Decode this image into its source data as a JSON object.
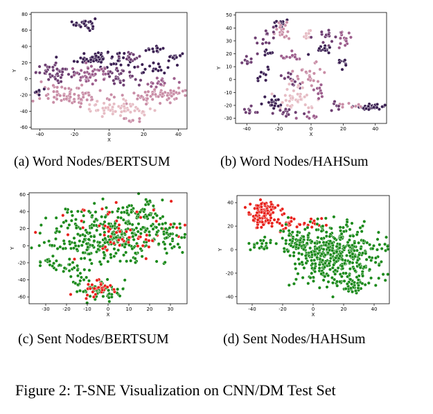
{
  "figure_caption": "Figure 2: T-SNE Visualization on CNN/DM Test Set",
  "chart_data": [
    {
      "type": "scatter",
      "caption": "(a) Word Nodes/BERTSUM",
      "xlabel": "X",
      "ylabel": "Y",
      "xlim": [
        -45,
        45
      ],
      "ylim": [
        -62,
        82
      ],
      "xticks": [
        -40,
        -20,
        0,
        20,
        40
      ],
      "yticks": [
        -60,
        -40,
        -20,
        0,
        20,
        40,
        60,
        80
      ],
      "colors": [
        "#3a1f52",
        "#6e3f72",
        "#9c5d8c",
        "#c98da6",
        "#e6bcc4"
      ],
      "clusters": [
        {
          "cx": -14,
          "cy": 68,
          "sx": 3,
          "sy": 4,
          "n": 25,
          "c": 0
        },
        {
          "cx": -6,
          "cy": 25,
          "sx": 7,
          "sy": 5,
          "n": 70,
          "c": 0
        },
        {
          "cx": 12,
          "cy": 28,
          "sx": 4,
          "sy": 3,
          "n": 14,
          "c": 1
        },
        {
          "cx": 26,
          "cy": 36,
          "sx": 3,
          "sy": 2,
          "n": 12,
          "c": 0
        },
        {
          "cx": 38,
          "cy": 26,
          "sx": 3,
          "sy": 3,
          "n": 16,
          "c": 0
        },
        {
          "cx": 25,
          "cy": 13,
          "sx": 5,
          "sy": 3,
          "n": 16,
          "c": 0
        },
        {
          "cx": -30,
          "cy": 8,
          "sx": 6,
          "sy": 5,
          "n": 45,
          "c": 1
        },
        {
          "cx": -10,
          "cy": 5,
          "sx": 6,
          "sy": 5,
          "n": 45,
          "c": 2
        },
        {
          "cx": 8,
          "cy": 2,
          "sx": 5,
          "sy": 6,
          "n": 30,
          "c": 1
        },
        {
          "cx": -20,
          "cy": -20,
          "sx": 10,
          "sy": 6,
          "n": 80,
          "c": 3
        },
        {
          "cx": 5,
          "cy": -38,
          "sx": 10,
          "sy": 5,
          "n": 55,
          "c": 4
        },
        {
          "cx": 30,
          "cy": -20,
          "sx": 8,
          "sy": 5,
          "n": 55,
          "c": 3
        },
        {
          "cx": 28,
          "cy": -5,
          "sx": 5,
          "sy": 4,
          "n": 18,
          "c": 2
        },
        {
          "cx": -40,
          "cy": -16,
          "sx": 2,
          "sy": 2,
          "n": 6,
          "c": 0
        },
        {
          "cx": 15,
          "cy": -50,
          "sx": 3,
          "sy": 2,
          "n": 8,
          "c": 3
        }
      ]
    },
    {
      "type": "scatter",
      "caption": "(b) Word Nodes/HAHSum",
      "xlabel": "X",
      "ylabel": "Y",
      "xlim": [
        -47,
        47
      ],
      "ylim": [
        -34,
        52
      ],
      "xticks": [
        -40,
        -20,
        0,
        20,
        40
      ],
      "yticks": [
        -30,
        -20,
        -10,
        0,
        10,
        20,
        30,
        40,
        50
      ],
      "colors": [
        "#3a1f52",
        "#6e3f72",
        "#9c5d8c",
        "#c98da6",
        "#e6bcc4"
      ],
      "clusters": [
        {
          "cx": -20,
          "cy": 44,
          "sx": 2,
          "sy": 2,
          "n": 12,
          "c": 0
        },
        {
          "cx": -17,
          "cy": 38,
          "sx": 3,
          "sy": 4,
          "n": 18,
          "c": 3
        },
        {
          "cx": -28,
          "cy": 32,
          "sx": 3,
          "sy": 4,
          "n": 14,
          "c": 1
        },
        {
          "cx": -38,
          "cy": 15,
          "sx": 2,
          "sy": 2,
          "n": 8,
          "c": 1
        },
        {
          "cx": -28,
          "cy": 20,
          "sx": 2,
          "sy": 2,
          "n": 8,
          "c": 0
        },
        {
          "cx": -12,
          "cy": 18,
          "sx": 3,
          "sy": 2,
          "n": 14,
          "c": 2
        },
        {
          "cx": -3,
          "cy": 35,
          "sx": 2,
          "sy": 2,
          "n": 10,
          "c": 4
        },
        {
          "cx": 10,
          "cy": 34,
          "sx": 3,
          "sy": 3,
          "n": 16,
          "c": 1
        },
        {
          "cx": 8,
          "cy": 24,
          "sx": 3,
          "sy": 2,
          "n": 14,
          "c": 0
        },
        {
          "cx": 20,
          "cy": 31,
          "sx": 3,
          "sy": 4,
          "n": 14,
          "c": 2
        },
        {
          "cx": 20,
          "cy": 12,
          "sx": 2,
          "sy": 2,
          "n": 10,
          "c": 0
        },
        {
          "cx": -30,
          "cy": 4,
          "sx": 2,
          "sy": 4,
          "n": 10,
          "c": 0
        },
        {
          "cx": -12,
          "cy": 0,
          "sx": 3,
          "sy": 4,
          "n": 14,
          "c": 1
        },
        {
          "cx": -3,
          "cy": 3,
          "sx": 5,
          "sy": 4,
          "n": 25,
          "c": 3
        },
        {
          "cx": -10,
          "cy": -14,
          "sx": 7,
          "sy": 5,
          "n": 40,
          "c": 4
        },
        {
          "cx": -25,
          "cy": -18,
          "sx": 4,
          "sy": 3,
          "n": 18,
          "c": 0
        },
        {
          "cx": -38,
          "cy": -23,
          "sx": 3,
          "sy": 3,
          "n": 10,
          "c": 1
        },
        {
          "cx": -15,
          "cy": -26,
          "sx": 4,
          "sy": 2,
          "n": 14,
          "c": 1
        },
        {
          "cx": 5,
          "cy": -10,
          "sx": 3,
          "sy": 3,
          "n": 10,
          "c": 2
        },
        {
          "cx": 36,
          "cy": -21,
          "sx": 5,
          "sy": 1.2,
          "n": 35,
          "c": 0
        },
        {
          "cx": 26,
          "cy": -20,
          "sx": 3,
          "sy": 1,
          "n": 8,
          "c": 3
        },
        {
          "cx": 0,
          "cy": -28,
          "sx": 3,
          "sy": 2,
          "n": 8,
          "c": 2
        },
        {
          "cx": 15,
          "cy": -22,
          "sx": 2,
          "sy": 2,
          "n": 6,
          "c": 1
        }
      ]
    },
    {
      "type": "scatter",
      "caption": "(c) Sent Nodes/BERTSUM",
      "xlabel": "X",
      "ylabel": "Y",
      "xlim": [
        -38,
        38
      ],
      "ylim": [
        -68,
        62
      ],
      "xticks": [
        -30,
        -20,
        -10,
        0,
        10,
        20,
        30
      ],
      "yticks": [
        -60,
        -40,
        -20,
        0,
        20,
        40,
        60
      ],
      "colors": [
        "#1b8a1b",
        "#e8211b"
      ],
      "clusters": [
        {
          "cx": 0,
          "cy": 10,
          "sx": 14,
          "sy": 17,
          "n": 320,
          "c": 0
        },
        {
          "cx": 15,
          "cy": 38,
          "sx": 6,
          "sy": 8,
          "n": 50,
          "c": 0
        },
        {
          "cx": -5,
          "cy": -50,
          "sx": 6,
          "sy": 7,
          "n": 60,
          "c": 0
        },
        {
          "cx": -5,
          "cy": -52,
          "sx": 5,
          "sy": 6,
          "n": 30,
          "c": 1
        },
        {
          "cx": 5,
          "cy": 15,
          "sx": 14,
          "sy": 16,
          "n": 60,
          "c": 1
        },
        {
          "cx": -30,
          "cy": -18,
          "sx": 3,
          "sy": 2,
          "n": 10,
          "c": 0
        },
        {
          "cx": -20,
          "cy": -25,
          "sx": 5,
          "sy": 5,
          "n": 25,
          "c": 0
        },
        {
          "cx": 28,
          "cy": 15,
          "sx": 5,
          "sy": 10,
          "n": 40,
          "c": 0
        }
      ]
    },
    {
      "type": "scatter",
      "caption": "(d) Sent Nodes/HAHSum",
      "xlabel": "X",
      "ylabel": "Y",
      "xlim": [
        -50,
        50
      ],
      "ylim": [
        -46,
        46
      ],
      "xticks": [
        -40,
        -20,
        0,
        20,
        40
      ],
      "yticks": [
        -40,
        -20,
        0,
        20,
        40
      ],
      "colors": [
        "#1b8a1b",
        "#e8211b"
      ],
      "clusters": [
        {
          "cx": -33,
          "cy": 30,
          "sx": 5,
          "sy": 6,
          "n": 110,
          "c": 1
        },
        {
          "cx": -15,
          "cy": 22,
          "sx": 4,
          "sy": 3,
          "n": 20,
          "c": 1
        },
        {
          "cx": 2,
          "cy": 22,
          "sx": 4,
          "sy": 2,
          "n": 12,
          "c": 1
        },
        {
          "cx": 15,
          "cy": -5,
          "sx": 14,
          "sy": 13,
          "n": 420,
          "c": 0
        },
        {
          "cx": -10,
          "cy": 5,
          "sx": 7,
          "sy": 7,
          "n": 60,
          "c": 0
        },
        {
          "cx": -35,
          "cy": 5,
          "sx": 4,
          "sy": 3,
          "n": 20,
          "c": 0
        },
        {
          "cx": 25,
          "cy": -30,
          "sx": 5,
          "sy": 5,
          "n": 30,
          "c": 0
        }
      ]
    }
  ]
}
